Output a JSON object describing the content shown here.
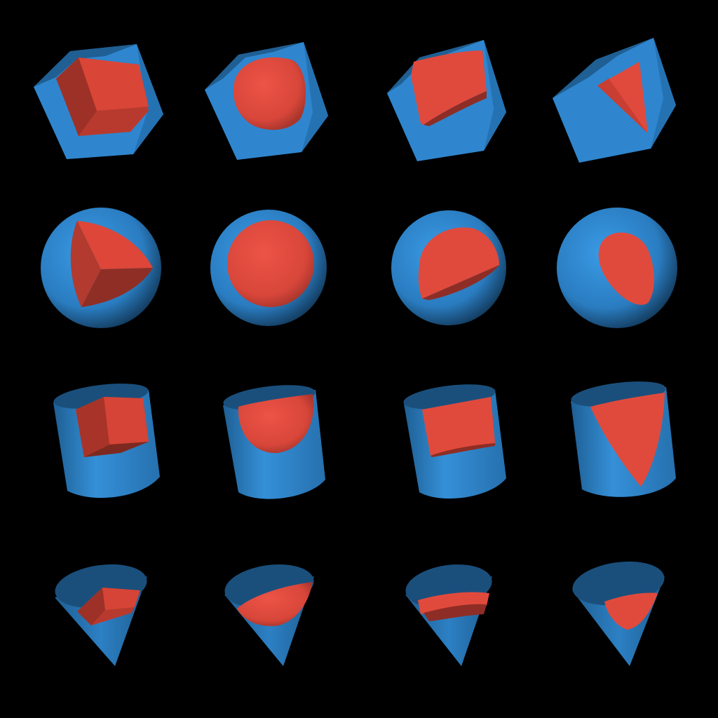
{
  "scene": {
    "background": "#000000",
    "colors": {
      "container": "#2f86cf",
      "container_dark": "#1f5f93",
      "container_deep": "#174a74",
      "inner": "#e04a3c",
      "inner_dark": "#b83a2f",
      "inner_deep": "#8e2d25"
    },
    "rows": [
      {
        "container": "cube",
        "inners": [
          "cube",
          "sphere",
          "cylinder",
          "cone"
        ]
      },
      {
        "container": "sphere",
        "inners": [
          "cube",
          "sphere",
          "cylinder",
          "cone"
        ]
      },
      {
        "container": "cylinder",
        "inners": [
          "cube",
          "sphere",
          "cylinder",
          "cone"
        ]
      },
      {
        "container": "cone",
        "inners": [
          "cube",
          "sphere",
          "cylinder",
          "cone"
        ]
      }
    ]
  }
}
